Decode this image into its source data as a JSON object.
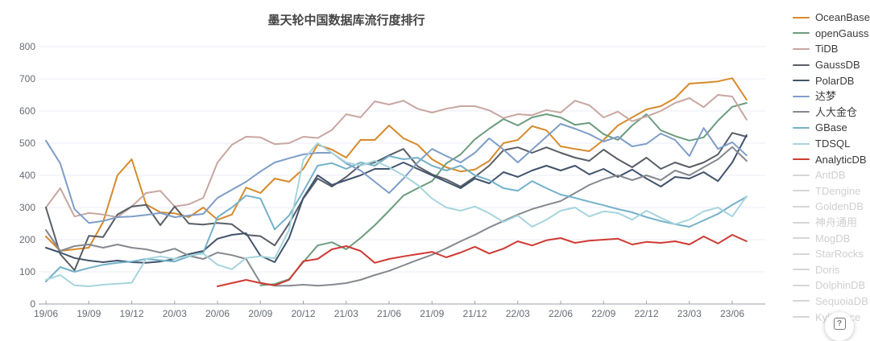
{
  "title": "墨天轮中国数据库流行度排行",
  "help_button": {
    "label": "?"
  },
  "axes": {
    "y_tick_labels": [
      "800",
      "700",
      "600",
      "500",
      "400",
      "300",
      "200",
      "100",
      "0"
    ],
    "x_tick_labels": [
      "19/06",
      "19/09",
      "19/12",
      "20/03",
      "20/06",
      "20/09",
      "20/12",
      "21/03",
      "21/06",
      "21/09",
      "21/12",
      "22/03",
      "22/06",
      "22/09",
      "22/12",
      "23/03",
      "23/06"
    ]
  },
  "chart_data": {
    "type": "line",
    "title": "墨天轮中国数据库流行度排行",
    "ylim": [
      0,
      800
    ],
    "grid": true,
    "legend_position": "right",
    "x": [
      "19/06",
      "19/07",
      "19/08",
      "19/09",
      "19/10",
      "19/11",
      "19/12",
      "20/01",
      "20/02",
      "20/03",
      "20/04",
      "20/05",
      "20/06",
      "20/07",
      "20/08",
      "20/09",
      "20/10",
      "20/11",
      "20/12",
      "21/01",
      "21/02",
      "21/03",
      "21/04",
      "21/05",
      "21/06",
      "21/07",
      "21/08",
      "21/09",
      "21/10",
      "21/11",
      "21/12",
      "22/01",
      "22/02",
      "22/03",
      "22/04",
      "22/05",
      "22/06",
      "22/07",
      "22/08",
      "22/09",
      "22/10",
      "22/11",
      "22/12",
      "23/01",
      "23/02",
      "23/03",
      "23/04",
      "23/05",
      "23/06",
      "23/07"
    ],
    "series": [
      {
        "name": "OceanBase",
        "color": "#d78a2b",
        "values": [
          210,
          165,
          170,
          175,
          255,
          400,
          450,
          310,
          285,
          282,
          270,
          300,
          262,
          278,
          362,
          345,
          390,
          380,
          420,
          495,
          480,
          455,
          510,
          510,
          555,
          515,
          495,
          450,
          425,
          412,
          418,
          445,
          500,
          510,
          553,
          540,
          490,
          482,
          475,
          510,
          555,
          580,
          605,
          615,
          640,
          685,
          688,
          692,
          702,
          635
        ]
      },
      {
        "name": "openGauss",
        "color": "#6b9c7d",
        "values": [
          null,
          null,
          null,
          null,
          null,
          null,
          null,
          null,
          null,
          null,
          null,
          null,
          null,
          null,
          null,
          58,
          62,
          77,
          130,
          182,
          192,
          170,
          205,
          245,
          290,
          337,
          360,
          382,
          437,
          465,
          512,
          545,
          575,
          555,
          580,
          590,
          580,
          557,
          563,
          528,
          510,
          555,
          590,
          540,
          522,
          508,
          518,
          570,
          613,
          625
        ]
      },
      {
        "name": "TiDB",
        "color": "#c8a6a0",
        "values": [
          300,
          360,
          272,
          283,
          278,
          270,
          303,
          345,
          352,
          303,
          310,
          330,
          440,
          495,
          520,
          518,
          497,
          500,
          520,
          516,
          541,
          590,
          580,
          630,
          620,
          632,
          607,
          595,
          607,
          615,
          615,
          602,
          578,
          590,
          587,
          603,
          595,
          632,
          618,
          580,
          598,
          568,
          583,
          600,
          625,
          640,
          612,
          650,
          645,
          573
        ]
      },
      {
        "name": "GaussDB",
        "color": "#585d66",
        "values": [
          300,
          155,
          105,
          212,
          208,
          278,
          303,
          308,
          245,
          303,
          250,
          247,
          252,
          248,
          215,
          211,
          182,
          250,
          328,
          390,
          365,
          395,
          432,
          440,
          462,
          482,
          428,
          403,
          387,
          365,
          395,
          430,
          478,
          487,
          470,
          487,
          470,
          455,
          445,
          480,
          450,
          425,
          455,
          420,
          440,
          425,
          440,
          465,
          532,
          520
        ]
      },
      {
        "name": "PolarDB",
        "color": "#40536b",
        "values": [
          175,
          160,
          143,
          135,
          130,
          135,
          130,
          128,
          132,
          140,
          155,
          165,
          203,
          215,
          220,
          150,
          130,
          205,
          330,
          400,
          370,
          385,
          400,
          420,
          420,
          440,
          420,
          400,
          380,
          360,
          390,
          375,
          410,
          395,
          415,
          430,
          415,
          430,
          403,
          420,
          395,
          418,
          390,
          365,
          395,
          390,
          410,
          382,
          440,
          525
        ]
      },
      {
        "name": "达梦",
        "color": "#7e9dc8",
        "values": [
          508,
          437,
          295,
          252,
          258,
          270,
          272,
          277,
          283,
          270,
          275,
          280,
          330,
          355,
          380,
          412,
          440,
          453,
          465,
          470,
          470,
          437,
          415,
          380,
          345,
          390,
          440,
          482,
          460,
          440,
          470,
          515,
          480,
          440,
          480,
          520,
          560,
          545,
          528,
          505,
          520,
          490,
          498,
          530,
          510,
          460,
          547,
          482,
          503,
          462
        ]
      },
      {
        "name": "人大金仓",
        "color": "#85898f",
        "values": [
          230,
          165,
          180,
          185,
          175,
          185,
          175,
          170,
          160,
          172,
          150,
          140,
          160,
          152,
          140,
          66,
          57,
          57,
          60,
          57,
          60,
          65,
          75,
          90,
          103,
          120,
          137,
          153,
          173,
          195,
          215,
          238,
          258,
          278,
          295,
          308,
          320,
          345,
          370,
          388,
          400,
          385,
          400,
          385,
          415,
          400,
          425,
          450,
          488,
          445
        ]
      },
      {
        "name": "GBase",
        "color": "#74b1c9",
        "values": [
          70,
          115,
          100,
          112,
          122,
          128,
          132,
          140,
          136,
          132,
          148,
          160,
          270,
          300,
          337,
          328,
          232,
          275,
          350,
          430,
          438,
          420,
          440,
          430,
          460,
          450,
          455,
          430,
          415,
          430,
          400,
          385,
          360,
          352,
          382,
          360,
          340,
          330,
          318,
          307,
          295,
          285,
          270,
          258,
          248,
          240,
          260,
          280,
          308,
          333
        ]
      },
      {
        "name": "TDSQL",
        "color": "#a6d4dd",
        "values": [
          75,
          90,
          58,
          55,
          60,
          63,
          66,
          140,
          148,
          140,
          150,
          157,
          122,
          108,
          143,
          148,
          142,
          230,
          448,
          500,
          470,
          440,
          430,
          445,
          425,
          400,
          370,
          328,
          300,
          290,
          303,
          282,
          255,
          275,
          240,
          262,
          290,
          300,
          272,
          288,
          283,
          262,
          290,
          268,
          248,
          262,
          288,
          300,
          272,
          335
        ]
      },
      {
        "name": "AnalyticDB",
        "color": "#cf3a33",
        "values": [
          null,
          null,
          null,
          null,
          null,
          null,
          null,
          null,
          null,
          null,
          null,
          null,
          55,
          65,
          75,
          65,
          58,
          75,
          133,
          140,
          170,
          180,
          165,
          128,
          140,
          148,
          155,
          162,
          145,
          160,
          178,
          157,
          172,
          195,
          182,
          198,
          205,
          190,
          197,
          200,
          203,
          185,
          193,
          190,
          195,
          185,
          210,
          188,
          215,
          195
        ]
      }
    ],
    "disabled_series": [
      "AntDB",
      "TDengine",
      "GoldenDB",
      "神舟通用",
      "MogDB",
      "StarRocks",
      "Doris",
      "DolphinDB",
      "SequoiaDB",
      "Kyligence"
    ],
    "disabled_color": "#d6d6d6"
  }
}
